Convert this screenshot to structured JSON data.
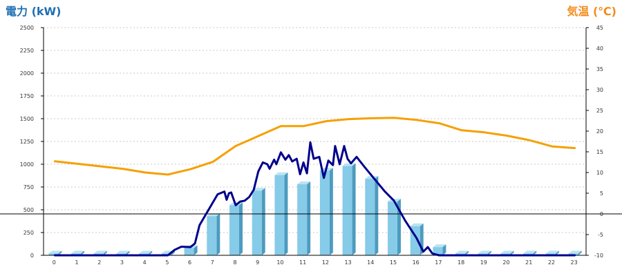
{
  "chart_data": {
    "type": "bar+line",
    "title_left": "電力 (kW)",
    "title_right": "気温 (℃)",
    "colors": {
      "bar_face": "#86cbe8",
      "bar_side": "#4d9bbf",
      "bar_top": "#b9e3f4",
      "power_line": "#00008b",
      "temp_line": "#f5a000",
      "grid": "#c8c8c8",
      "zero_line": "#000000",
      "title_left": "#1f6fb2",
      "title_right": "#f28c1b"
    },
    "categories": [
      "0",
      "1",
      "2",
      "3",
      "4",
      "5",
      "6",
      "7",
      "8",
      "9",
      "10",
      "11",
      "12",
      "13",
      "14",
      "15",
      "16",
      "17",
      "18",
      "19",
      "20",
      "21",
      "22",
      "23"
    ],
    "y_left": {
      "min": 0,
      "max": 2500,
      "ticks": [
        "0",
        "250",
        "500",
        "750",
        "1000",
        "1250",
        "1500",
        "1750",
        "2000",
        "2250",
        "2500"
      ]
    },
    "y_right": {
      "min": -10,
      "max": 45,
      "ticks": [
        "-10",
        "-5",
        "0",
        "5",
        "10",
        "15",
        "20",
        "25",
        "30",
        "35",
        "40",
        "45"
      ]
    },
    "grid": true,
    "series": [
      {
        "kind": "bar",
        "axis": "left",
        "values": [
          20,
          20,
          20,
          20,
          20,
          20,
          80,
          430,
          550,
          710,
          880,
          780,
          930,
          980,
          840,
          590,
          320,
          90,
          20,
          20,
          20,
          20,
          20,
          20
        ]
      },
      {
        "kind": "line",
        "axis": "left",
        "points": [
          [
            0,
            0
          ],
          [
            5,
            0
          ],
          [
            5.3,
            60
          ],
          [
            5.6,
            95
          ],
          [
            6,
            90
          ],
          [
            6.2,
            130
          ],
          [
            6.4,
            330
          ],
          [
            6.8,
            500
          ],
          [
            7.2,
            670
          ],
          [
            7.5,
            700
          ],
          [
            7.6,
            610
          ],
          [
            7.7,
            680
          ],
          [
            7.8,
            690
          ],
          [
            8,
            550
          ],
          [
            8.2,
            590
          ],
          [
            8.4,
            600
          ],
          [
            8.6,
            640
          ],
          [
            8.8,
            720
          ],
          [
            9,
            920
          ],
          [
            9.2,
            1020
          ],
          [
            9.4,
            1000
          ],
          [
            9.5,
            950
          ],
          [
            9.7,
            1050
          ],
          [
            9.8,
            1000
          ],
          [
            10,
            1130
          ],
          [
            10.2,
            1050
          ],
          [
            10.35,
            1100
          ],
          [
            10.5,
            1030
          ],
          [
            10.7,
            1060
          ],
          [
            10.85,
            890
          ],
          [
            11,
            1020
          ],
          [
            11.15,
            900
          ],
          [
            11.3,
            1240
          ],
          [
            11.45,
            1060
          ],
          [
            11.7,
            1080
          ],
          [
            11.9,
            850
          ],
          [
            12.1,
            1040
          ],
          [
            12.3,
            990
          ],
          [
            12.4,
            1200
          ],
          [
            12.6,
            1000
          ],
          [
            12.8,
            1200
          ],
          [
            12.95,
            1060
          ],
          [
            13.1,
            1010
          ],
          [
            13.35,
            1080
          ],
          [
            13.7,
            970
          ],
          [
            14.1,
            850
          ],
          [
            14.6,
            700
          ],
          [
            15.0,
            600
          ],
          [
            15.5,
            380
          ],
          [
            16.0,
            190
          ],
          [
            16.3,
            40
          ],
          [
            16.5,
            90
          ],
          [
            16.7,
            20
          ],
          [
            17,
            0
          ],
          [
            23,
            0
          ]
        ]
      },
      {
        "kind": "line",
        "axis": "right",
        "points": [
          [
            0,
            12.7
          ],
          [
            1,
            12.1
          ],
          [
            2,
            11.5
          ],
          [
            3,
            10.9
          ],
          [
            4,
            10
          ],
          [
            5,
            9.5
          ],
          [
            6,
            10.8
          ],
          [
            7,
            12.6
          ],
          [
            8,
            16.4
          ],
          [
            9,
            18.8
          ],
          [
            10,
            21.2
          ],
          [
            11,
            21.2
          ],
          [
            12,
            22.4
          ],
          [
            13,
            22.9
          ],
          [
            14,
            23.1
          ],
          [
            15,
            23.2
          ],
          [
            16,
            22.7
          ],
          [
            17,
            21.9
          ],
          [
            18,
            20.2
          ],
          [
            19,
            19.7
          ],
          [
            20,
            18.9
          ],
          [
            21,
            17.8
          ],
          [
            22,
            16.3
          ],
          [
            23,
            15.9
          ]
        ]
      }
    ]
  }
}
